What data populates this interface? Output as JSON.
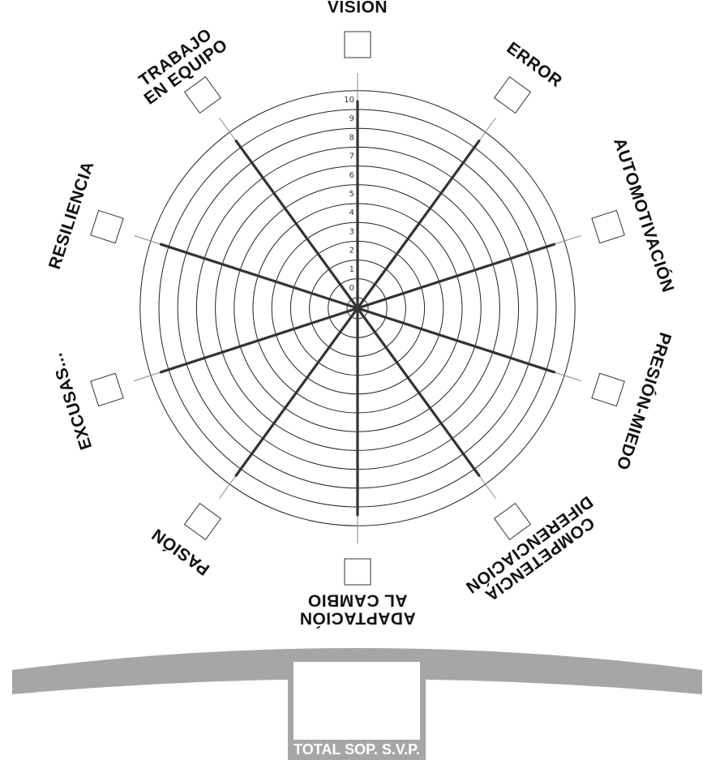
{
  "wheel": {
    "scale_ticks": [
      "0",
      "1",
      "2",
      "3",
      "4",
      "5",
      "6",
      "7",
      "8",
      "9",
      "10"
    ],
    "axes": [
      {
        "id": "vision",
        "lines": [
          "VISIÓN"
        ]
      },
      {
        "id": "error",
        "lines": [
          "ERROR"
        ]
      },
      {
        "id": "automotivacion",
        "lines": [
          "AUTOMOTIVACIÓN"
        ]
      },
      {
        "id": "presion-miedo",
        "lines": [
          "PRESIÓN-MIEDO"
        ]
      },
      {
        "id": "competencia",
        "lines": [
          "COMPETENCIA",
          "DIFERENCIACIÓN"
        ]
      },
      {
        "id": "adaptacion",
        "lines": [
          "ADAPTACIÓN",
          "AL CAMBIO"
        ]
      },
      {
        "id": "pasion",
        "lines": [
          "PASIÓN"
        ]
      },
      {
        "id": "excusas",
        "lines": [
          "EXCUSAS..."
        ]
      },
      {
        "id": "resiliencia",
        "lines": [
          "RESILIENCIA"
        ]
      },
      {
        "id": "trabajo-en-equipo",
        "lines": [
          "TRABAJO",
          "EN EQUIPO"
        ]
      }
    ]
  },
  "total": {
    "label": "TOTAL SOP. S.V.P.",
    "value": ""
  },
  "colors": {
    "line": "#222222",
    "thin_line": "#888888",
    "banner": "#a6a6a6"
  }
}
